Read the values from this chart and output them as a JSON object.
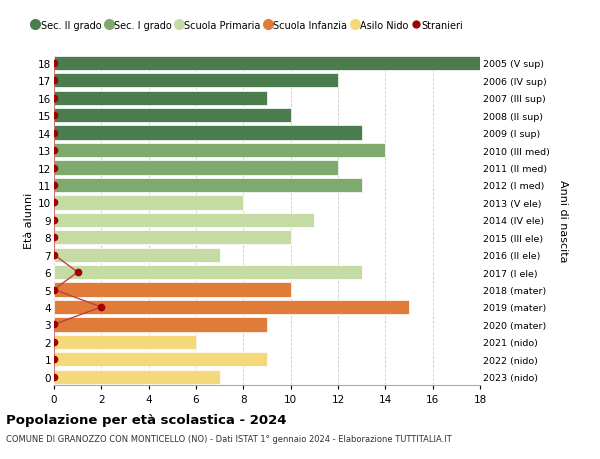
{
  "ages": [
    18,
    17,
    16,
    15,
    14,
    13,
    12,
    11,
    10,
    9,
    8,
    7,
    6,
    5,
    4,
    3,
    2,
    1,
    0
  ],
  "right_labels": [
    "2005 (V sup)",
    "2006 (IV sup)",
    "2007 (III sup)",
    "2008 (II sup)",
    "2009 (I sup)",
    "2010 (III med)",
    "2011 (II med)",
    "2012 (I med)",
    "2013 (V ele)",
    "2014 (IV ele)",
    "2015 (III ele)",
    "2016 (II ele)",
    "2017 (I ele)",
    "2018 (mater)",
    "2019 (mater)",
    "2020 (mater)",
    "2021 (nido)",
    "2022 (nido)",
    "2023 (nido)"
  ],
  "bar_values": [
    18,
    12,
    9,
    10,
    13,
    14,
    12,
    13,
    8,
    11,
    10,
    7,
    13,
    10,
    15,
    9,
    6,
    9,
    7
  ],
  "bar_colors": [
    "#4a7c4e",
    "#4a7c4e",
    "#4a7c4e",
    "#4a7c4e",
    "#4a7c4e",
    "#7faa6e",
    "#7faa6e",
    "#7faa6e",
    "#c5dba4",
    "#c5dba4",
    "#c5dba4",
    "#c5dba4",
    "#c5dba4",
    "#e07b39",
    "#e07b39",
    "#e07b39",
    "#f5d87a",
    "#f5d87a",
    "#f5d87a"
  ],
  "stranieri_values": [
    0,
    0,
    0,
    0,
    0,
    0,
    0,
    0,
    0,
    0,
    0,
    0,
    1,
    0,
    2,
    0,
    0,
    0,
    0
  ],
  "stranieri_color": "#a00000",
  "stranieri_line_color": "#c04040",
  "legend_labels": [
    "Sec. II grado",
    "Sec. I grado",
    "Scuola Primaria",
    "Scuola Infanzia",
    "Asilo Nido",
    "Stranieri"
  ],
  "legend_colors": [
    "#4a7c4e",
    "#7faa6e",
    "#c5dba4",
    "#e07b39",
    "#f5d87a",
    "#a00000"
  ],
  "xlabel_ticks": [
    0,
    2,
    4,
    6,
    8,
    10,
    12,
    14,
    16,
    18
  ],
  "xlim": [
    0,
    18
  ],
  "ylim": [
    -0.5,
    18.5
  ],
  "ylabel_left": "Età alunni",
  "ylabel_right": "Anni di nascita",
  "title": "Popolazione per età scolastica - 2024",
  "subtitle": "COMUNE DI GRANOZZO CON MONTICELLO (NO) - Dati ISTAT 1° gennaio 2024 - Elaborazione TUTTITALIA.IT",
  "background_color": "#ffffff",
  "grid_color": "#cccccc",
  "bar_height": 0.82
}
